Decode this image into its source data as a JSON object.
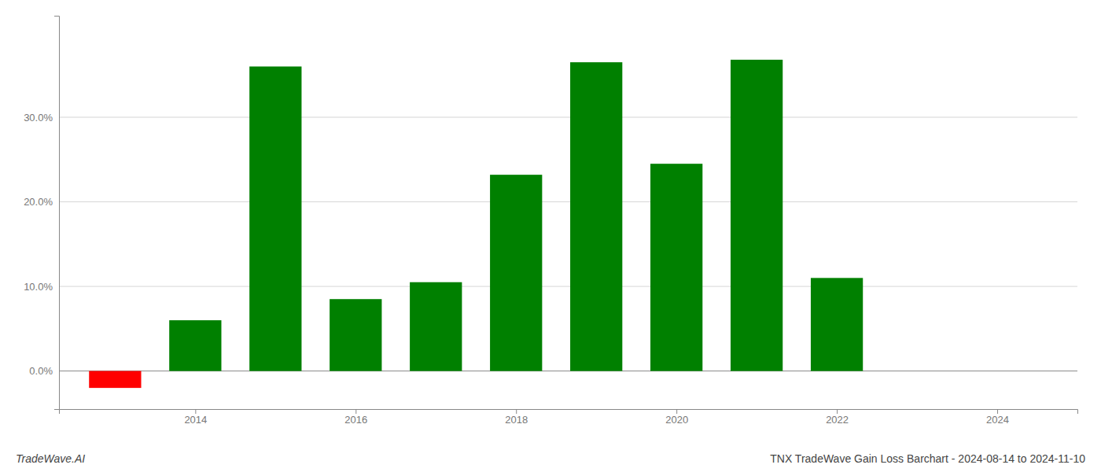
{
  "chart_data": {
    "type": "bar",
    "title": "TNX TradeWave Gain Loss Barchart - 2024-08-14 to 2024-11-10",
    "annotations": [
      "TradeWave.AI"
    ],
    "x": [
      2013,
      2014,
      2015,
      2016,
      2017,
      2018,
      2019,
      2020,
      2021,
      2022,
      2023
    ],
    "values": [
      -0.02,
      0.06,
      0.36,
      0.085,
      0.105,
      0.232,
      0.365,
      0.245,
      0.368,
      0.11,
      0.0
    ],
    "colors": [
      "#ff0000",
      "#008000",
      "#008000",
      "#008000",
      "#008000",
      "#008000",
      "#008000",
      "#008000",
      "#008000",
      "#008000",
      "#008000"
    ],
    "xlim": [
      2012.3,
      2025.0
    ],
    "xticks": [
      2014,
      2016,
      2018,
      2020,
      2022,
      2024
    ],
    "ylim": [
      -0.045,
      0.42
    ],
    "yticks": [
      {
        "value": 0.0,
        "label": "0.0%"
      },
      {
        "value": 0.1,
        "label": "10.0%"
      },
      {
        "value": 0.2,
        "label": "20.0%"
      },
      {
        "value": 0.3,
        "label": "30.0%"
      }
    ],
    "grid": true
  }
}
